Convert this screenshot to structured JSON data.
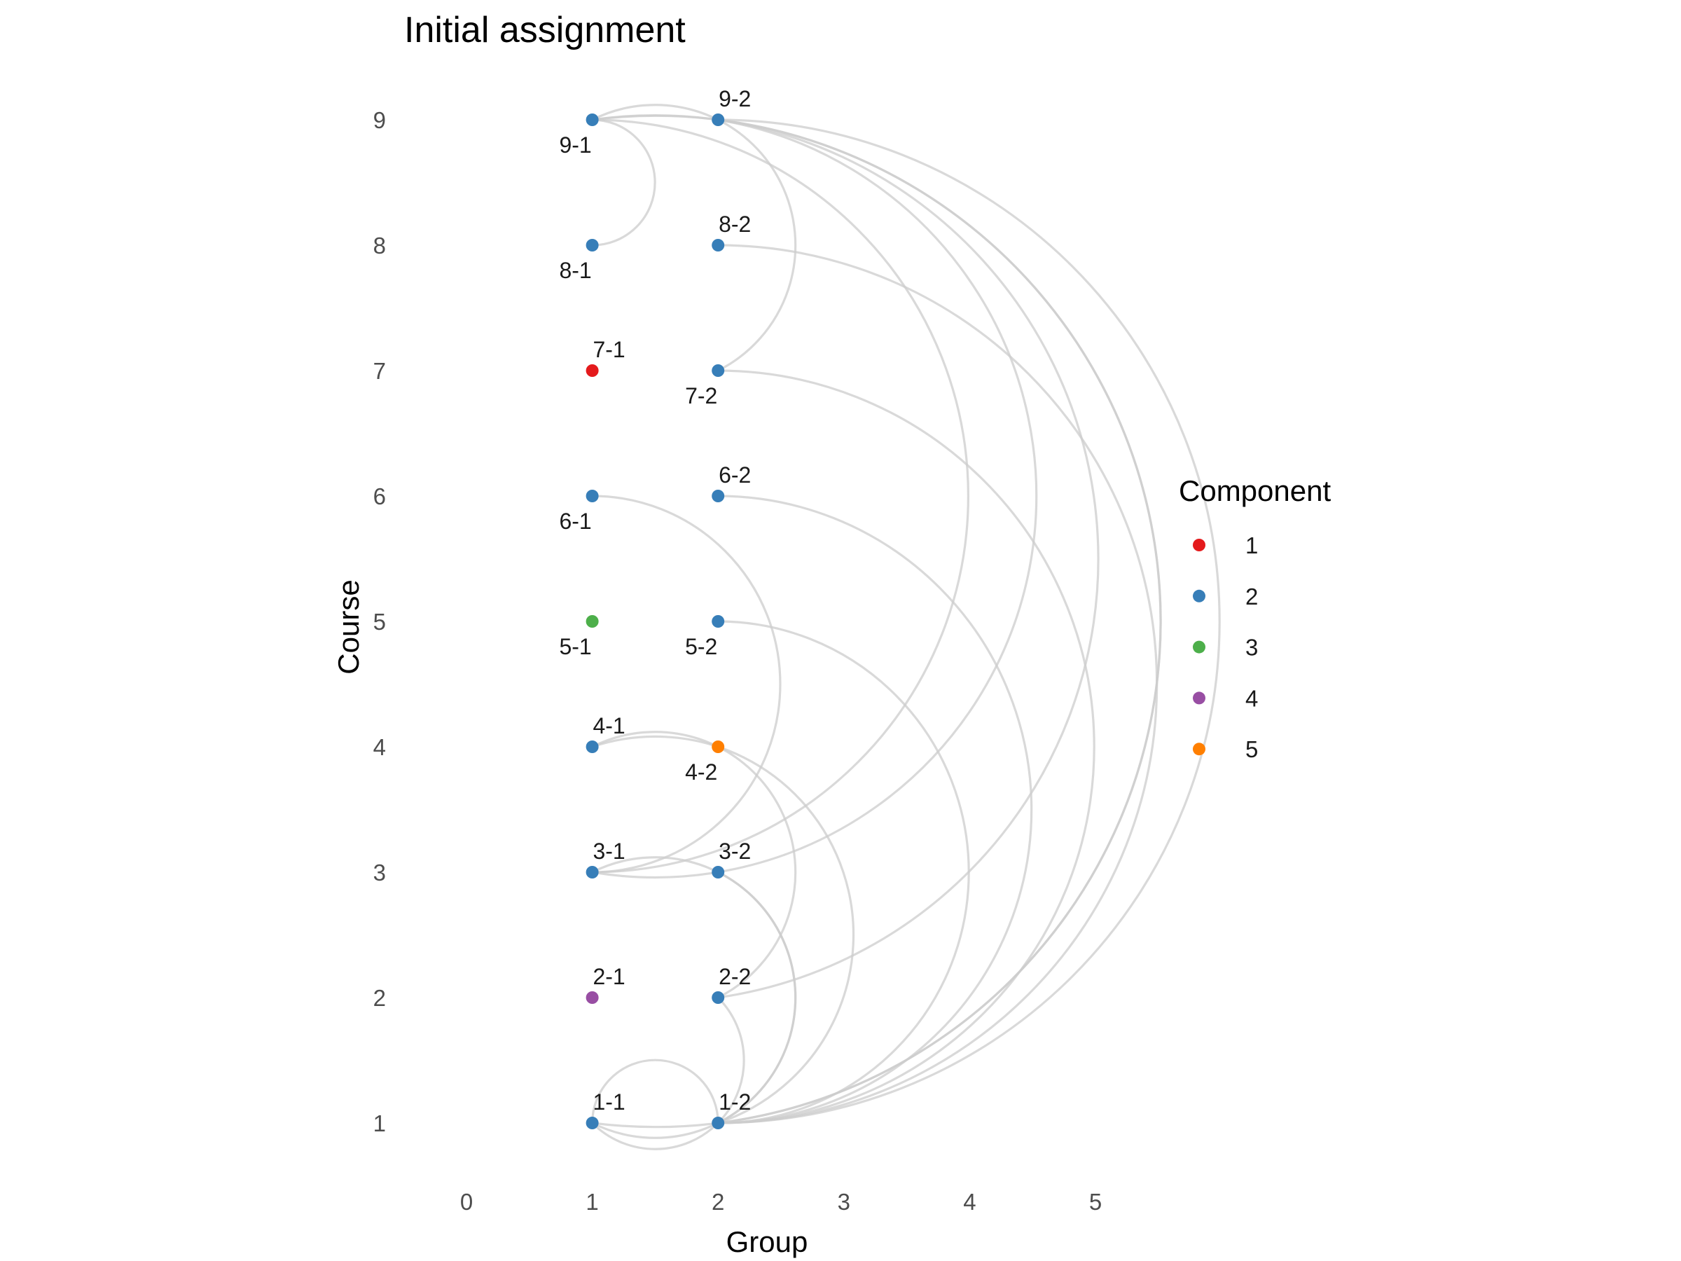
{
  "chart_data": {
    "type": "network",
    "title": "Initial assignment",
    "xlabel": "Group",
    "ylabel": "Course",
    "xlim": [
      0,
      5
    ],
    "ylim": [
      1,
      9
    ],
    "x_ticks": [
      "0",
      "1",
      "2",
      "3",
      "4",
      "5"
    ],
    "y_ticks": [
      "1",
      "2",
      "3",
      "4",
      "5",
      "6",
      "7",
      "8",
      "9"
    ],
    "grid": false,
    "legend": {
      "title": "Component",
      "placement": "right",
      "entries": [
        {
          "label": "1",
          "color": "#e41a1c"
        },
        {
          "label": "2",
          "color": "#377eb8"
        },
        {
          "label": "3",
          "color": "#4daf4a"
        },
        {
          "label": "4",
          "color": "#984ea3"
        },
        {
          "label": "5",
          "color": "#ff7f00"
        }
      ]
    },
    "nodes": [
      {
        "id": "1-1",
        "group": 1,
        "course": 1,
        "component": "2",
        "label_pos": "above"
      },
      {
        "id": "1-2",
        "group": 2,
        "course": 1,
        "component": "2",
        "label_pos": "above"
      },
      {
        "id": "2-1",
        "group": 1,
        "course": 2,
        "component": "4",
        "label_pos": "above"
      },
      {
        "id": "2-2",
        "group": 2,
        "course": 2,
        "component": "2",
        "label_pos": "above"
      },
      {
        "id": "3-1",
        "group": 1,
        "course": 3,
        "component": "2",
        "label_pos": "above"
      },
      {
        "id": "3-2",
        "group": 2,
        "course": 3,
        "component": "2",
        "label_pos": "above"
      },
      {
        "id": "4-1",
        "group": 1,
        "course": 4,
        "component": "2",
        "label_pos": "above"
      },
      {
        "id": "4-2",
        "group": 2,
        "course": 4,
        "component": "5",
        "label_pos": "below"
      },
      {
        "id": "5-1",
        "group": 1,
        "course": 5,
        "component": "3",
        "label_pos": "below"
      },
      {
        "id": "5-2",
        "group": 2,
        "course": 5,
        "component": "2",
        "label_pos": "below"
      },
      {
        "id": "6-1",
        "group": 1,
        "course": 6,
        "component": "2",
        "label_pos": "below"
      },
      {
        "id": "6-2",
        "group": 2,
        "course": 6,
        "component": "2",
        "label_pos": "above"
      },
      {
        "id": "7-1",
        "group": 1,
        "course": 7,
        "component": "1",
        "label_pos": "above"
      },
      {
        "id": "7-2",
        "group": 2,
        "course": 7,
        "component": "2",
        "label_pos": "below"
      },
      {
        "id": "8-1",
        "group": 1,
        "course": 8,
        "component": "2",
        "label_pos": "below"
      },
      {
        "id": "8-2",
        "group": 2,
        "course": 8,
        "component": "2",
        "label_pos": "above"
      },
      {
        "id": "9-1",
        "group": 1,
        "course": 9,
        "component": "2",
        "label_pos": "below"
      },
      {
        "id": "9-2",
        "group": 2,
        "course": 9,
        "component": "2",
        "label_pos": "above"
      }
    ],
    "edges": [
      {
        "from": "9-1",
        "to": "8-1"
      },
      {
        "from": "9-1",
        "to": "7-2"
      },
      {
        "from": "9-1",
        "to": "3-1"
      },
      {
        "from": "9-1",
        "to": "2-2"
      },
      {
        "from": "9-1",
        "to": "1-2"
      },
      {
        "from": "9-2",
        "to": "3-1"
      },
      {
        "from": "9-2",
        "to": "1-1"
      },
      {
        "from": "9-2",
        "to": "1-2"
      },
      {
        "from": "8-2",
        "to": "1-2"
      },
      {
        "from": "7-2",
        "to": "1-2"
      },
      {
        "from": "6-1",
        "to": "3-1"
      },
      {
        "from": "6-2",
        "to": "1-2"
      },
      {
        "from": "5-2",
        "to": "1-2"
      },
      {
        "from": "4-1",
        "to": "2-2"
      },
      {
        "from": "4-1",
        "to": "1-2"
      },
      {
        "from": "3-1",
        "to": "1-2"
      },
      {
        "from": "3-2",
        "to": "1-1"
      },
      {
        "from": "2-2",
        "to": "1-1"
      },
      {
        "from": "1-1",
        "to": "1-2"
      }
    ]
  }
}
